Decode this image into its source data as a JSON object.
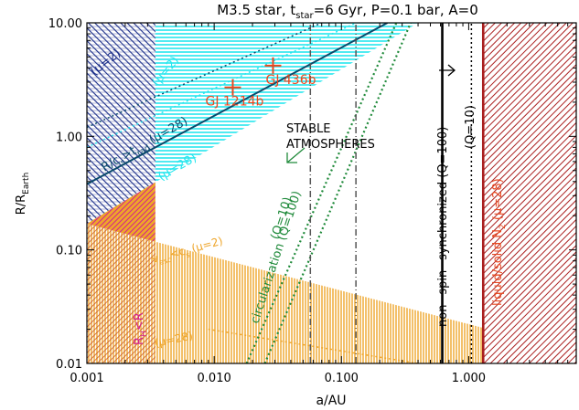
{
  "chart_data": {
    "type": "area",
    "title": {
      "prefix": "M3.5 star, t",
      "sub": "star",
      "suffix": "=6 Gyr, P=0.1 bar, A=0"
    },
    "xlabel": "a/AU",
    "ylabel": {
      "main": "R/R",
      "sub": "Earth"
    },
    "xscale": "log",
    "yscale": "log",
    "xlim": [
      0.001,
      7.0
    ],
    "ylim": [
      0.01,
      10.0
    ],
    "xticks": [
      {
        "value": 0.001,
        "label": "0.001"
      },
      {
        "value": 0.01,
        "label": "0.010"
      },
      {
        "value": 0.1,
        "label": "0.100"
      },
      {
        "value": 1.0,
        "label": "1.000"
      }
    ],
    "yticks": [
      {
        "value": 0.01,
        "label": "0.01"
      },
      {
        "value": 0.1,
        "label": "0.10"
      },
      {
        "value": 1.0,
        "label": "1.00"
      },
      {
        "value": 10.0,
        "label": "10.00"
      }
    ],
    "colors": {
      "navy": "#1c2f8a",
      "dark_teal": "#0a4a6b",
      "cyan": "#25e6ee",
      "orange": "#eea52a",
      "magenta": "#d21f8f",
      "dark_red": "#aa1f1f",
      "green": "#1f8a3a",
      "red_planet": "#e8481f"
    },
    "regions": [
      {
        "id": "escape-mu2",
        "color": "navy",
        "pattern": "diagonal",
        "x_max": 0.00345
      },
      {
        "id": "escape-mu28",
        "color": "cyan",
        "pattern": "horizontal",
        "boundary": [
          [
            0.001,
            0.17
          ],
          [
            0.4,
            10.0
          ]
        ]
      },
      {
        "id": "roche",
        "color": "magenta",
        "pattern": "diagonal",
        "x_max": 0.00345,
        "y_range": [
          0.1,
          0.17
        ]
      },
      {
        "id": "vesc-mu2",
        "color": "orange",
        "pattern": "vertical",
        "boundary": [
          [
            0.001,
            0.17
          ],
          [
            7.0,
            0.0125
          ]
        ]
      },
      {
        "id": "vesc-mu28",
        "color": "orange",
        "pattern": "diagonal",
        "x_max": 0.00345
      },
      {
        "id": "liquid-N2",
        "color": "dark_red",
        "pattern": "diagonal",
        "x_min": 1.3
      }
    ],
    "lines": [
      {
        "id": "rc-mu28-line",
        "color": "dark_teal",
        "style": "solid",
        "points": [
          [
            0.001,
            0.38
          ],
          [
            0.23,
            10.0
          ]
        ]
      },
      {
        "id": "rc-mu2-line",
        "color": "dark_teal",
        "style": "dotted",
        "points": [
          [
            0.001,
            1.2
          ],
          [
            0.07,
            10.0
          ]
        ]
      },
      {
        "id": "cyan-mu2-line",
        "color": "cyan",
        "style": "dotted",
        "points": [
          [
            0.001,
            0.8
          ],
          [
            0.13,
            10.0
          ]
        ]
      },
      {
        "id": "vesc-mu28-line",
        "color": "orange",
        "style": "dotted",
        "points": [
          [
            0.009,
            0.02
          ],
          [
            0.4,
            0.01
          ]
        ]
      },
      {
        "id": "circ-q100",
        "color": "green",
        "style": "dotted",
        "points": [
          [
            0.018,
            0.01
          ],
          [
            0.27,
            10.0
          ]
        ]
      },
      {
        "id": "circ-q10",
        "color": "green",
        "style": "dotted",
        "points": [
          [
            0.025,
            0.01
          ],
          [
            0.35,
            10.0
          ]
        ]
      },
      {
        "id": "dashdot-1",
        "color": "#555555",
        "style": "dashdot",
        "points": [
          [
            0.057,
            0.01
          ],
          [
            0.057,
            10.0
          ]
        ]
      },
      {
        "id": "dashdot-2",
        "color": "#555555",
        "style": "dashdot",
        "points": [
          [
            0.13,
            0.01
          ],
          [
            0.13,
            10.0
          ]
        ]
      },
      {
        "id": "spin-q100",
        "color": "#000000",
        "style": "solid",
        "points": [
          [
            0.62,
            0.01
          ],
          [
            0.62,
            10.0
          ]
        ]
      },
      {
        "id": "spin-q10",
        "color": "#000000",
        "style": "dotted",
        "points": [
          [
            1.05,
            0.01
          ],
          [
            1.05,
            10.0
          ]
        ]
      },
      {
        "id": "n2-boundary",
        "color": "dark_red",
        "style": "solid",
        "points": [
          [
            1.3,
            0.01
          ],
          [
            1.3,
            10.0
          ]
        ]
      }
    ],
    "planets": [
      {
        "id": "gj436b",
        "name": "GJ 436b",
        "a": 0.029,
        "r": 4.2
      },
      {
        "id": "gj1214b",
        "name": "GJ 1214b",
        "a": 0.014,
        "r": 2.7
      }
    ],
    "annotations": {
      "mu2_navy": "(μ=2)",
      "mu2_cyan": "(μ=2)",
      "rc_label_a": "R/c",
      "rc_label_sub": "s",
      "rc_label_b": ">t",
      "rc_label_sub2": "rad",
      "rc_label_c": " (μ=28)",
      "mu28_cyan": "(μ=28)",
      "stable_1": "STABLE",
      "stable_2": "ATMOSPHERES",
      "circ": "circularization (Q=100)",
      "circ_q10": "(Q=10)",
      "spin": "non−spin−synchronized (Q=100)",
      "spin_q10": "(Q=10)",
      "n2_a": "liquid/solid N",
      "n2_sub": "2",
      "n2_b": " (μ=28)",
      "vesc_a": "v",
      "vesc_sub": "esc",
      "vesc_b": "<c",
      "vesc_sub2": "s",
      "vesc_c": " (μ=2)",
      "vesc_mu28": "(μ=28)",
      "roche_a": "R",
      "roche_sub": "H",
      "roche_b": "<R"
    }
  }
}
